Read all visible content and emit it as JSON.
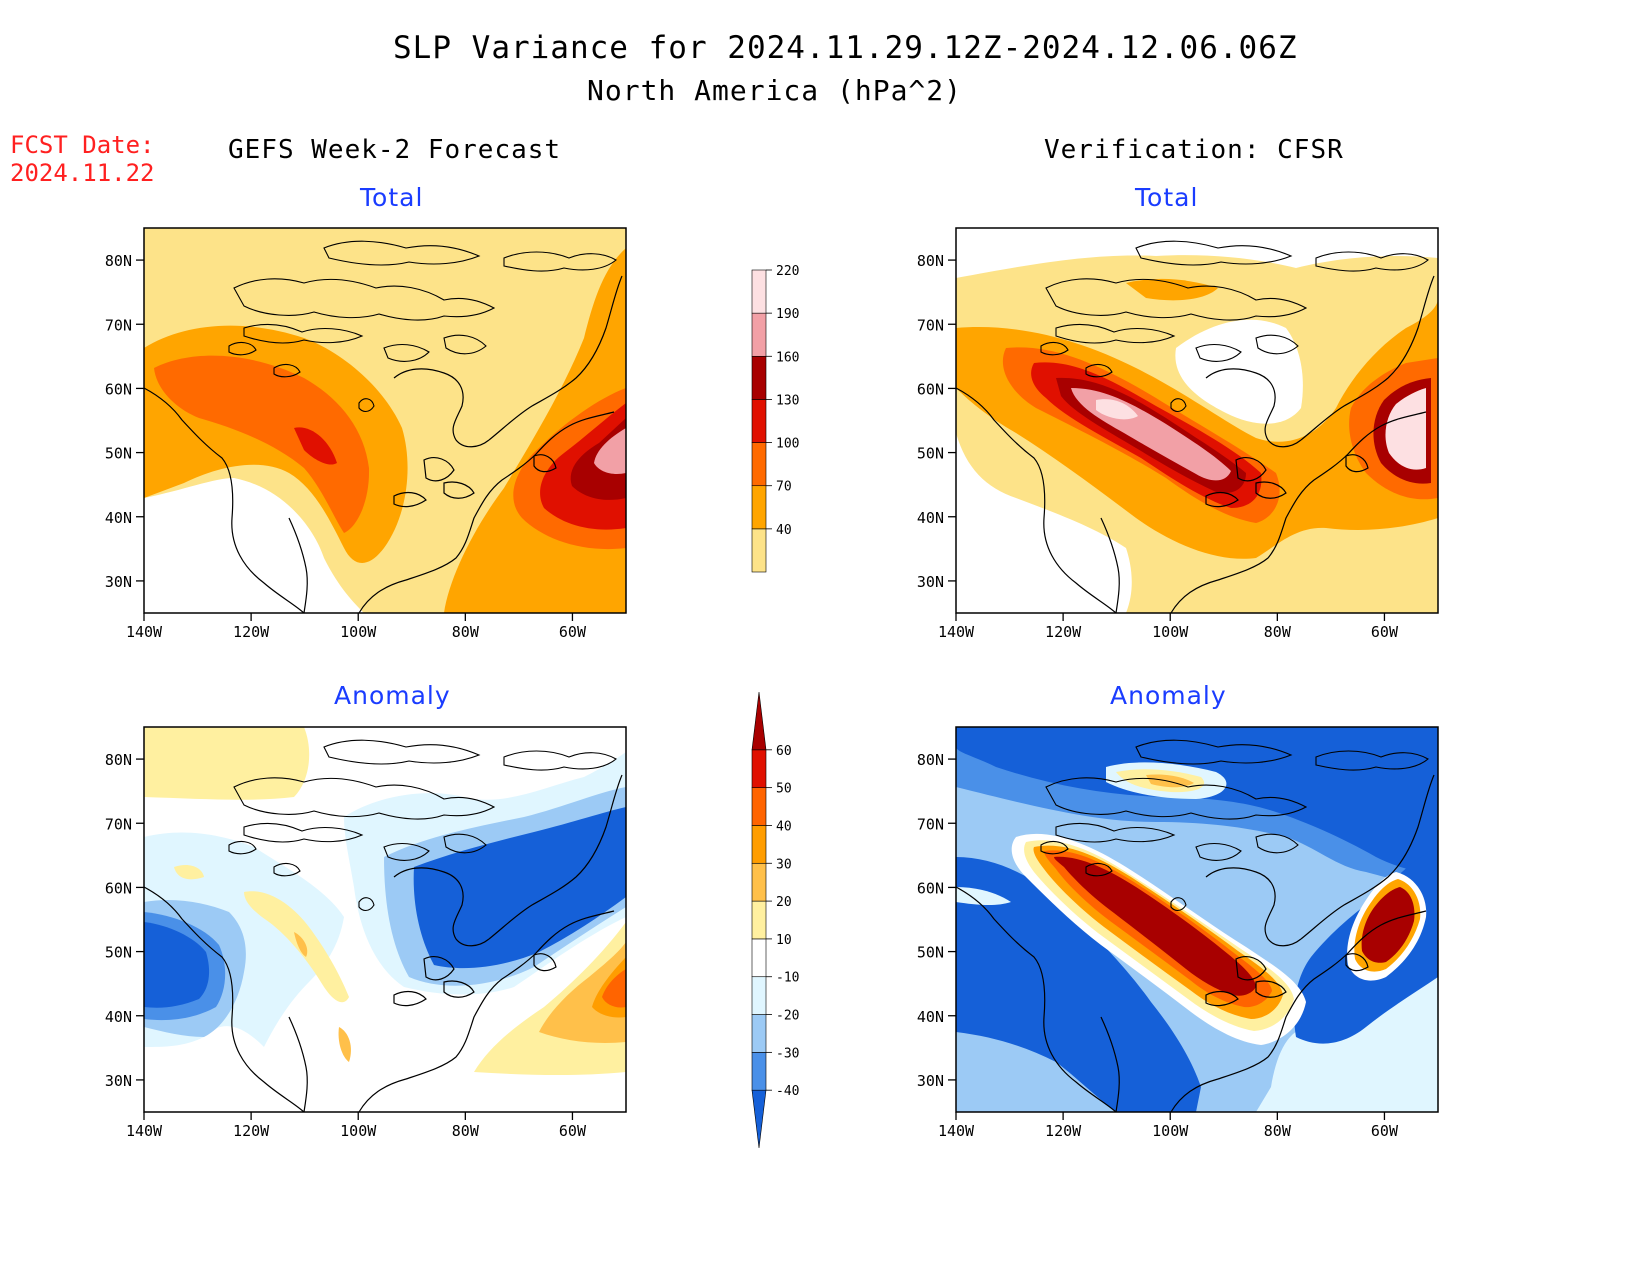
{
  "header": {
    "title": "SLP Variance for 2024.11.29.12Z-2024.12.06.06Z",
    "subtitle": "North America (hPa^2)",
    "fcst_label": "FCST Date:",
    "fcst_date": "2024.11.22"
  },
  "columns": {
    "left": "GEFS Week-2 Forecast",
    "right": "Verification: CFSR"
  },
  "panels": {
    "total_label": "Total",
    "anomaly_label": "Anomaly"
  },
  "axes": {
    "lat_ticks": [
      "30N",
      "40N",
      "50N",
      "60N",
      "70N",
      "80N"
    ],
    "lat_values": [
      30,
      40,
      50,
      60,
      70,
      80
    ],
    "lon_ticks": [
      "140W",
      "120W",
      "100W",
      "80W",
      "60W"
    ],
    "lon_values": [
      -140,
      -120,
      -100,
      -80,
      -60
    ],
    "lat_range": [
      25,
      85
    ],
    "lon_range": [
      -140,
      -50
    ]
  },
  "colorbars": {
    "total": {
      "labels": [
        "40",
        "70",
        "100",
        "130",
        "160",
        "190",
        "220"
      ],
      "colors": [
        "#fde389",
        "#ffa500",
        "#ff6a00",
        "#e01000",
        "#a80000",
        "#f2a0a6",
        "#fde0e2"
      ]
    },
    "anomaly": {
      "labels": [
        "-40",
        "-30",
        "-20",
        "-10",
        "10",
        "20",
        "30",
        "40",
        "50",
        "60"
      ],
      "colors": [
        "#1560d8",
        "#4a90e8",
        "#9ccaf5",
        "#e0f6ff",
        "#ffffff",
        "#fff0a0",
        "#ffc04a",
        "#ff9d00",
        "#ff6400",
        "#e01000",
        "#a80000"
      ]
    }
  },
  "legend_colors": {
    "title_blue": "#1a3cff",
    "fcst_red": "#ff2020"
  }
}
